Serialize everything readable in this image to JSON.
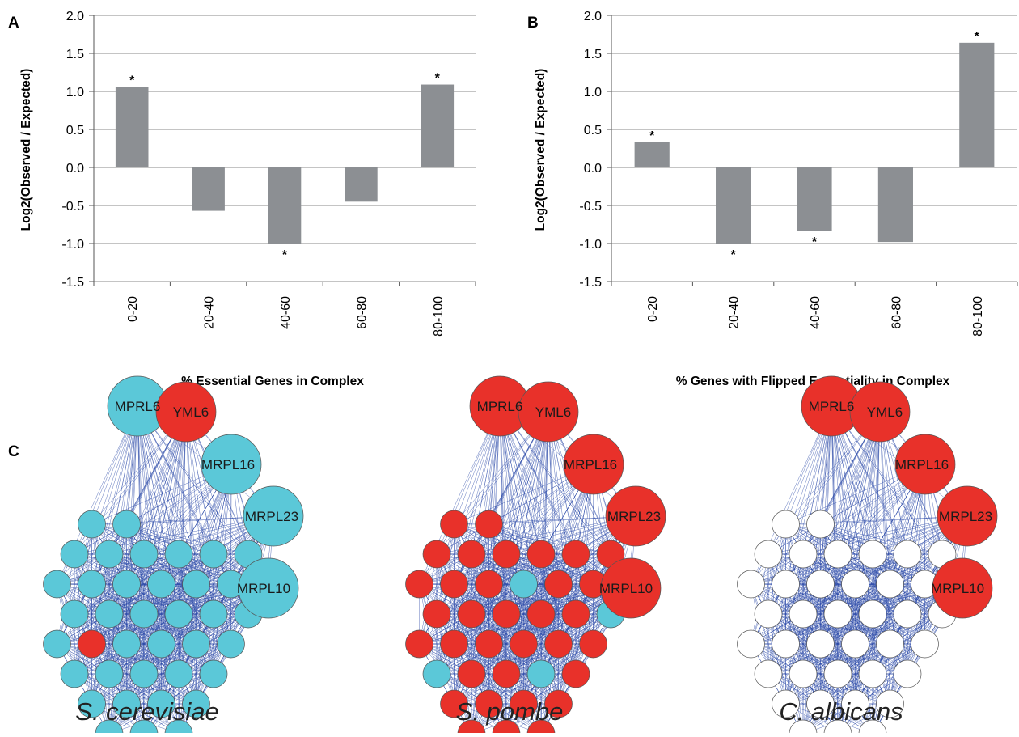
{
  "panels": {
    "a": "A",
    "b": "B",
    "c": "C"
  },
  "chart_data": [
    {
      "type": "bar",
      "categories": [
        "0-20",
        "20-40",
        "40-60",
        "60-80",
        "80-100"
      ],
      "values": [
        1.06,
        -0.57,
        -1.0,
        -0.45,
        1.09
      ],
      "significant": [
        "*",
        "",
        "*",
        "",
        "*"
      ],
      "xlabel": "% Essential Genes in Complex",
      "ylabel": "Log2(Observed / Expected)",
      "ylim": [
        -1.5,
        2.0
      ],
      "yticks": [
        "2.0",
        "1.5",
        "1.0",
        "0.5",
        "0.0",
        "-0.5",
        "-1.0",
        "-1.5"
      ],
      "bar_color": "#8c8f93",
      "grid": true
    },
    {
      "type": "bar",
      "categories": [
        "0-20",
        "20-40",
        "40-60",
        "60-80",
        "80-100"
      ],
      "values": [
        0.33,
        -1.0,
        -0.83,
        -0.98,
        1.64
      ],
      "significant": [
        "*",
        "*",
        "*",
        "",
        "*"
      ],
      "xlabel": "% Genes with Flipped Essentiality in Complex",
      "ylabel": "Log2(Observed / Expected)",
      "ylim": [
        -1.5,
        2.0
      ],
      "yticks": [
        "2.0",
        "1.5",
        "1.0",
        "0.5",
        "0.0",
        "-0.5",
        "-1.0",
        "-1.5"
      ],
      "bar_color": "#8c8f93",
      "grid": true
    }
  ],
  "networks": {
    "colors": {
      "essential": "#e8312a",
      "nonessential": "#5bc8d8",
      "unknown": "#ffffff",
      "edge": "#2b4aa8"
    },
    "labeled_genes": [
      "MPRL6",
      "YML6",
      "MRPL16",
      "MRPL23",
      "MRPL10"
    ],
    "species": [
      {
        "name": "S. cerevisiae",
        "labeled_status": [
          "nonessential",
          "essential",
          "nonessential",
          "nonessential",
          "nonessential"
        ],
        "default_status": "nonessential",
        "special_nodes": [
          {
            "index": 20,
            "status": "essential"
          }
        ]
      },
      {
        "name": "S. pombe",
        "labeled_status": [
          "essential",
          "essential",
          "essential",
          "essential",
          "essential"
        ],
        "default_status": "essential",
        "special_nodes": [
          {
            "index": 9,
            "status": "nonessential"
          },
          {
            "index": 18,
            "status": "nonessential"
          },
          {
            "index": 25,
            "status": "nonessential"
          },
          {
            "index": 28,
            "status": "nonessential"
          }
        ]
      },
      {
        "name": "C. albicans",
        "labeled_status": [
          "essential",
          "essential",
          "essential",
          "essential",
          "essential"
        ],
        "default_status": "unknown",
        "special_nodes": []
      }
    ]
  }
}
